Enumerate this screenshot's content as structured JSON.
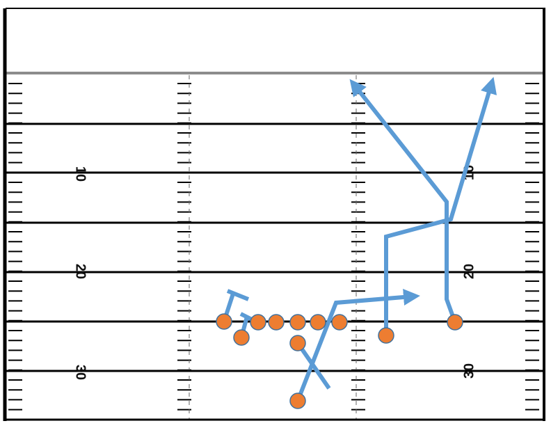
{
  "field": {
    "left_numbers": [
      "10",
      "20",
      "30"
    ],
    "right_numbers": [
      "10",
      "20",
      "30"
    ]
  }
}
